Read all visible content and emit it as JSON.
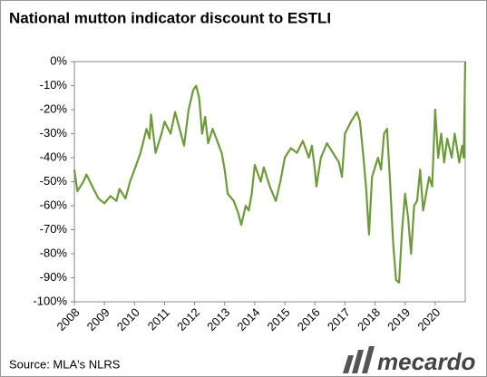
{
  "chart_data": {
    "type": "line",
    "title": "National mutton indicator discount to ESTLI",
    "source": "Source: MLA's NLRS",
    "logo": "mecardo",
    "x": [
      2008.0,
      2008.1,
      2008.3,
      2008.4,
      2008.6,
      2008.8,
      2009.0,
      2009.2,
      2009.4,
      2009.5,
      2009.7,
      2009.85,
      2010.0,
      2010.2,
      2010.4,
      2010.5,
      2010.55,
      2010.7,
      2010.9,
      2011.0,
      2011.2,
      2011.35,
      2011.5,
      2011.65,
      2011.8,
      2011.95,
      2012.05,
      2012.15,
      2012.25,
      2012.35,
      2012.45,
      2012.6,
      2012.75,
      2012.9,
      2013.0,
      2013.1,
      2013.3,
      2013.45,
      2013.55,
      2013.7,
      2013.8,
      2013.9,
      2014.0,
      2014.2,
      2014.3,
      2014.5,
      2014.7,
      2014.85,
      2015.0,
      2015.2,
      2015.4,
      2015.6,
      2015.8,
      2015.9,
      2016.0,
      2016.05,
      2016.2,
      2016.4,
      2016.6,
      2016.8,
      2016.9,
      2017.0,
      2017.2,
      2017.4,
      2017.5,
      2017.6,
      2017.7,
      2017.8,
      2017.9,
      2018.1,
      2018.2,
      2018.3,
      2018.4,
      2018.5,
      2018.6,
      2018.7,
      2018.8,
      2018.9,
      2019.0,
      2019.1,
      2019.2,
      2019.3,
      2019.4,
      2019.5,
      2019.6,
      2019.7,
      2019.8,
      2019.9,
      2020.0,
      2020.1,
      2020.2,
      2020.3,
      2020.4,
      2020.55,
      2020.65,
      2020.8,
      2020.9,
      2020.95,
      2021.0
    ],
    "series": [
      {
        "name": "National mutton indicator discount to ESTLI",
        "color": "#6f9a3b",
        "values": [
          -45,
          -54,
          -50,
          -47,
          -52,
          -57,
          -59,
          -56,
          -58,
          -53,
          -57,
          -50,
          -45,
          -38,
          -28,
          -32,
          -22,
          -38,
          -30,
          -25,
          -30,
          -21,
          -28,
          -35,
          -20,
          -12,
          -10,
          -15,
          -30,
          -23,
          -34,
          -28,
          -33,
          -38,
          -45,
          -55,
          -58,
          -63,
          -68,
          -60,
          -62,
          -55,
          -43,
          -50,
          -44,
          -52,
          -58,
          -50,
          -40,
          -36,
          -38,
          -33,
          -40,
          -35,
          -45,
          -52,
          -40,
          -34,
          -38,
          -42,
          -48,
          -30,
          -25,
          -21,
          -25,
          -38,
          -52,
          -72,
          -48,
          -40,
          -45,
          -30,
          -28,
          -50,
          -75,
          -91,
          -92,
          -70,
          -55,
          -65,
          -80,
          -60,
          -58,
          -45,
          -62,
          -55,
          -48,
          -52,
          -20,
          -40,
          -30,
          -42,
          -32,
          -40,
          -30,
          -42,
          -35,
          -40,
          0
        ]
      }
    ],
    "xlim": [
      2008,
      2021
    ],
    "xticks": [
      2008,
      2009,
      2010,
      2011,
      2012,
      2013,
      2014,
      2015,
      2016,
      2017,
      2018,
      2019,
      2020
    ],
    "ylim": [
      -100,
      0
    ],
    "yticks": [
      {
        "value": 0,
        "label": "0%"
      },
      {
        "value": -10,
        "label": "-10%"
      },
      {
        "value": -20,
        "label": "-20%"
      },
      {
        "value": -30,
        "label": "-30%"
      },
      {
        "value": -40,
        "label": "-40%"
      },
      {
        "value": -50,
        "label": "-50%"
      },
      {
        "value": -60,
        "label": "-60%"
      },
      {
        "value": -70,
        "label": "-70%"
      },
      {
        "value": -80,
        "label": "-80%"
      },
      {
        "value": -90,
        "label": "-90%"
      },
      {
        "value": -100,
        "label": "-100%"
      }
    ]
  }
}
